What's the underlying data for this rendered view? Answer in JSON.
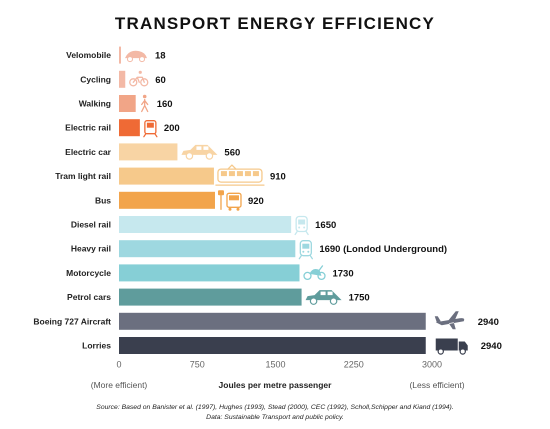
{
  "chart_data": {
    "type": "bar",
    "orientation": "horizontal",
    "title": "TRANSPORT ENERGY EFFICIENCY",
    "xlabel": "Joules per metre passenger",
    "xlim": [
      0,
      3000
    ],
    "xticks": [
      "0",
      "750",
      "1500",
      "2250",
      "3000"
    ],
    "left_note": "(More efficient)",
    "right_note": "(Less efficient)",
    "grid": false,
    "categories": [
      "Velomobile",
      "Cycling",
      "Walking",
      "Electric rail",
      "Electric car",
      "Tram light rail",
      "Bus",
      "Diesel rail",
      "Heavy rail",
      "Motorcycle",
      "Petrol cars",
      "Boeing 727 Aircraft",
      "Lorries"
    ],
    "values": [
      18,
      60,
      160,
      200,
      560,
      910,
      920,
      1650,
      1690,
      1730,
      1750,
      2940,
      2940
    ],
    "value_labels": [
      "18",
      "60",
      "160",
      "200",
      "560",
      "910",
      "920",
      "1650",
      "1690 (Londod Underground)",
      "1730",
      "1750",
      "2940",
      "2940"
    ],
    "colors": [
      "#f3b9a6",
      "#f3b9a6",
      "#f1a587",
      "#ef6a35",
      "#f8d4a4",
      "#f6c98b",
      "#f2a44b",
      "#c6e8ee",
      "#9ed8e0",
      "#86cfd6",
      "#5f9c9c",
      "#6b6f7f",
      "#3a3f4e"
    ],
    "icons": [
      "velomobile-icon",
      "bicycle-icon",
      "pedestrian-icon",
      "tram-icon",
      "car-icon",
      "light-rail-icon",
      "bus-stop-icon",
      "train-icon",
      "metro-icon",
      "motorcycle-icon",
      "car-icon",
      "airplane-icon",
      "lorry-icon"
    ],
    "icon_colors": [
      "#f3b9a6",
      "#f3b9a6",
      "#f1a587",
      "#ef6a35",
      "#f8d4a4",
      "#f6c98b",
      "#f2a44b",
      "#c6e8ee",
      "#9ed8e0",
      "#86cfd6",
      "#5f9c9c",
      "#6b6f7f",
      "#3a3f4e"
    ]
  },
  "source_note": "Source: Based on Banister et al. (1997), Hughes (1993), Stead (2000), CEC (1992), Scholl,Schipper and Kiand (1994).",
  "data_note": "Data: Sustainable Transport and public policy."
}
